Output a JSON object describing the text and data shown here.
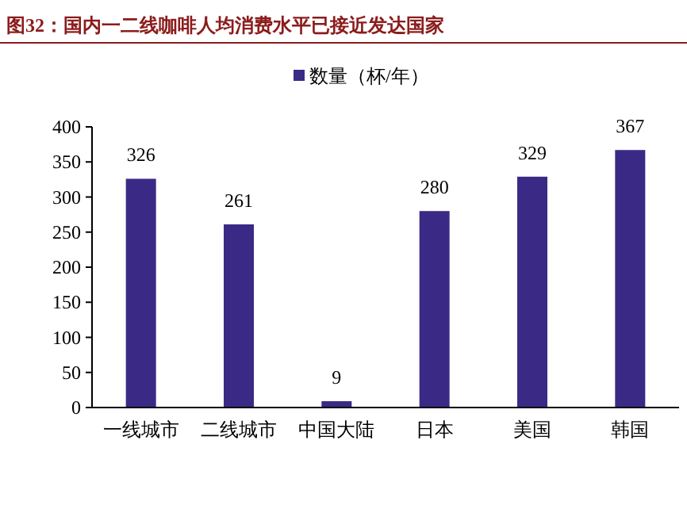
{
  "chart_data": {
    "type": "bar",
    "title": "图32：国内一二线咖啡人均消费水平已接近发达国家",
    "categories": [
      "一线城市",
      "二线城市",
      "中国大陆",
      "日本",
      "美国",
      "韩国"
    ],
    "series": [
      {
        "name": "数量（杯/年）",
        "color": "#3b2a85",
        "values": [
          326,
          261,
          9,
          280,
          329,
          367
        ]
      }
    ],
    "ylim": [
      0,
      400
    ],
    "yticks": [
      0,
      50,
      100,
      150,
      200,
      250,
      300,
      350,
      400
    ],
    "data_labels": true,
    "legend": "top",
    "grid": false
  }
}
